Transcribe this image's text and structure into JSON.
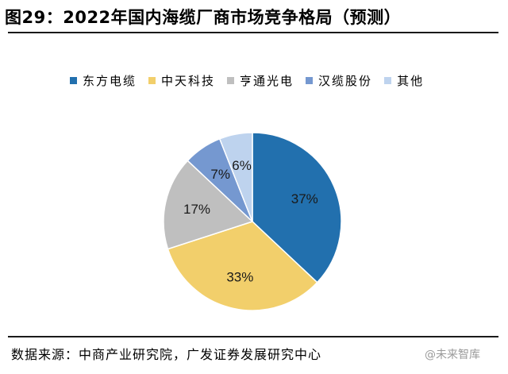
{
  "title": "图29：2022年国内海缆厂商市场竞争格局（预测）",
  "source": "数据来源：中商产业研究院，广发证券发展研究中心",
  "watermark": "@未来智库",
  "chart_data": {
    "type": "pie",
    "categories": [
      "东方电缆",
      "中天科技",
      "亨通光电",
      "汉缆股份",
      "其他"
    ],
    "values": [
      37,
      33,
      17,
      7,
      6
    ],
    "labels": [
      "37%",
      "33%",
      "17%",
      "7%",
      "6%"
    ],
    "colors": [
      "#2270AE",
      "#F2CF6B",
      "#BFBFBF",
      "#7598D0",
      "#BED3EE"
    ],
    "start_angle_deg": 0,
    "direction": "clockwise",
    "legend_position": "top"
  }
}
